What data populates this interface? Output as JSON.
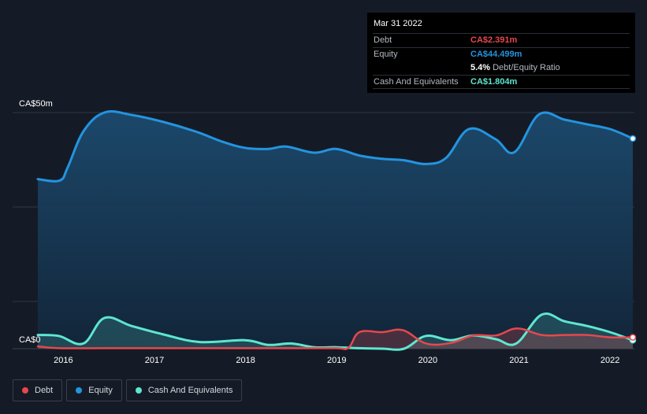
{
  "tooltip": {
    "date": "Mar 31 2022",
    "debt_label": "Debt",
    "debt_value": "CA$2.391m",
    "equity_label": "Equity",
    "equity_value": "CA$44.499m",
    "ratio_value": "5.4%",
    "ratio_label": "Debt/Equity Ratio",
    "cash_label": "Cash And Equivalents",
    "cash_value": "CA$1.804m"
  },
  "legend": [
    {
      "label": "Debt",
      "color": "#e5484d"
    },
    {
      "label": "Equity",
      "color": "#2394df"
    },
    {
      "label": "Cash And Equivalents",
      "color": "#5ee6d0"
    }
  ],
  "colors": {
    "debt": "#e5484d",
    "equity": "#2394df",
    "cash": "#5ee6d0",
    "background": "#151b26",
    "grid": "#2f3744"
  },
  "chart_data": {
    "type": "area",
    "ylabel_top": "CA$50m",
    "ylabel_bottom": "CA$0",
    "ylim": [
      0,
      50
    ],
    "xlim": [
      2015.72,
      2022.25
    ],
    "x_tick_labels": [
      "2016",
      "2017",
      "2018",
      "2019",
      "2020",
      "2021",
      "2022"
    ],
    "x_tick_values": [
      2016,
      2017,
      2018,
      2019,
      2020,
      2021,
      2022
    ],
    "series": [
      {
        "name": "Equity",
        "x": [
          2015.72,
          2015.96,
          2016.05,
          2016.22,
          2016.45,
          2016.75,
          2017.1,
          2017.45,
          2017.75,
          2018.0,
          2018.25,
          2018.45,
          2018.75,
          2018.99,
          2019.25,
          2019.5,
          2019.74,
          2019.98,
          2020.2,
          2020.45,
          2020.74,
          2020.95,
          2021.22,
          2021.5,
          2021.75,
          2022.0,
          2022.25
        ],
        "values": [
          35.9,
          35.6,
          38.5,
          46,
          50,
          49.5,
          48,
          46,
          43.8,
          42.5,
          42.3,
          42.8,
          41.5,
          42.3,
          40.9,
          40.2,
          39.9,
          39.1,
          40.4,
          46.5,
          44.4,
          41.6,
          49.6,
          48.5,
          47.5,
          46.5,
          44.5
        ]
      },
      {
        "name": "Cash And Equivalents",
        "x": [
          2015.72,
          2015.95,
          2016.22,
          2016.45,
          2016.75,
          2017.1,
          2017.5,
          2017.99,
          2018.25,
          2018.5,
          2018.75,
          2019.0,
          2019.25,
          2019.5,
          2019.74,
          2019.98,
          2020.25,
          2020.5,
          2020.75,
          2020.97,
          2021.25,
          2021.5,
          2021.75,
          2022.0,
          2022.25
        ],
        "values": [
          2.9,
          2.7,
          1.1,
          6.5,
          4.8,
          3.0,
          1.4,
          1.8,
          0.8,
          1.1,
          0.3,
          0.3,
          0.1,
          0.0,
          0.0,
          2.7,
          1.8,
          2.8,
          2.0,
          1.1,
          7.2,
          5.8,
          4.8,
          3.5,
          1.8
        ]
      },
      {
        "name": "Debt",
        "x": [
          2015.72,
          2015.95,
          2016.5,
          2017.0,
          2017.5,
          2018.0,
          2018.5,
          2018.99,
          2019.13,
          2019.25,
          2019.5,
          2019.73,
          2019.98,
          2020.25,
          2020.5,
          2020.75,
          2020.98,
          2021.25,
          2021.5,
          2021.75,
          2022.0,
          2022.25
        ],
        "values": [
          0.5,
          0.1,
          0.1,
          0.1,
          0.1,
          0.1,
          0.1,
          0.1,
          0.2,
          3.5,
          3.5,
          3.9,
          1.1,
          1.2,
          2.8,
          2.8,
          4.3,
          2.9,
          2.9,
          2.9,
          2.4,
          2.4
        ]
      }
    ]
  }
}
